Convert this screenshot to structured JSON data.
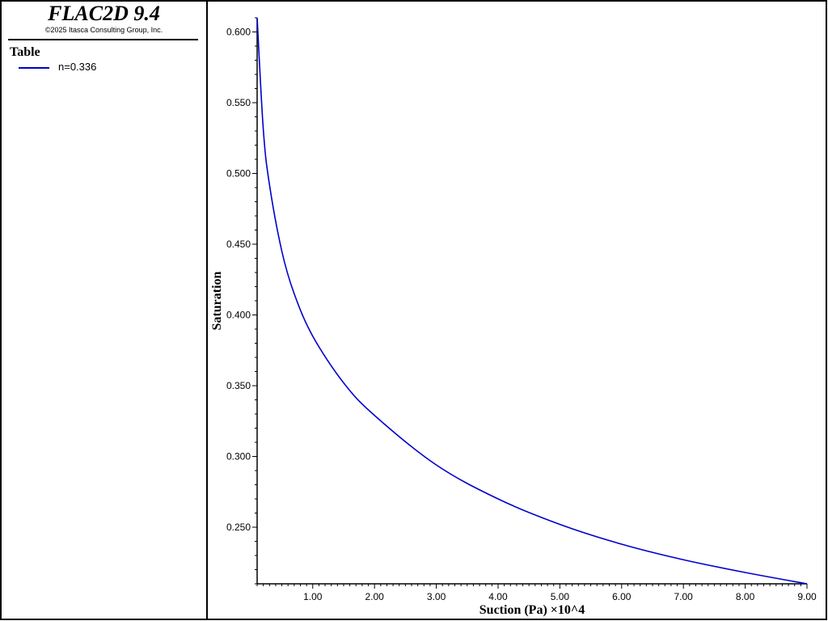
{
  "app": {
    "title": "FLAC2D 9.4",
    "copyright": "©2025 Itasca Consulting Group, Inc."
  },
  "legend": {
    "heading": "Table",
    "entries": [
      {
        "label": "n=0.336",
        "color": "#0000cc"
      }
    ]
  },
  "chart_data": {
    "type": "line",
    "xlabel": "Suction (Pa) ×10^4",
    "ylabel": "Saturation",
    "xlim": [
      0.1,
      9.0
    ],
    "ylim": [
      0.21,
      0.61
    ],
    "x_ticks": [
      "1.00",
      "2.00",
      "3.00",
      "4.00",
      "5.00",
      "6.00",
      "7.00",
      "8.00",
      "9.00"
    ],
    "y_ticks": [
      "0.250",
      "0.300",
      "0.350",
      "0.400",
      "0.450",
      "0.500",
      "0.550",
      "0.600"
    ],
    "grid": false,
    "series": [
      {
        "name": "n=0.336",
        "color": "#0000cc",
        "x": [
          0.1,
          0.2,
          0.3,
          0.5,
          0.7,
          1.0,
          1.5,
          2.0,
          3.0,
          4.0,
          5.0,
          6.0,
          7.0,
          8.0,
          9.0
        ],
        "y": [
          0.61,
          0.531,
          0.492,
          0.445,
          0.415,
          0.385,
          0.352,
          0.329,
          0.294,
          0.27,
          0.252,
          0.238,
          0.227,
          0.218,
          0.21
        ]
      }
    ]
  }
}
